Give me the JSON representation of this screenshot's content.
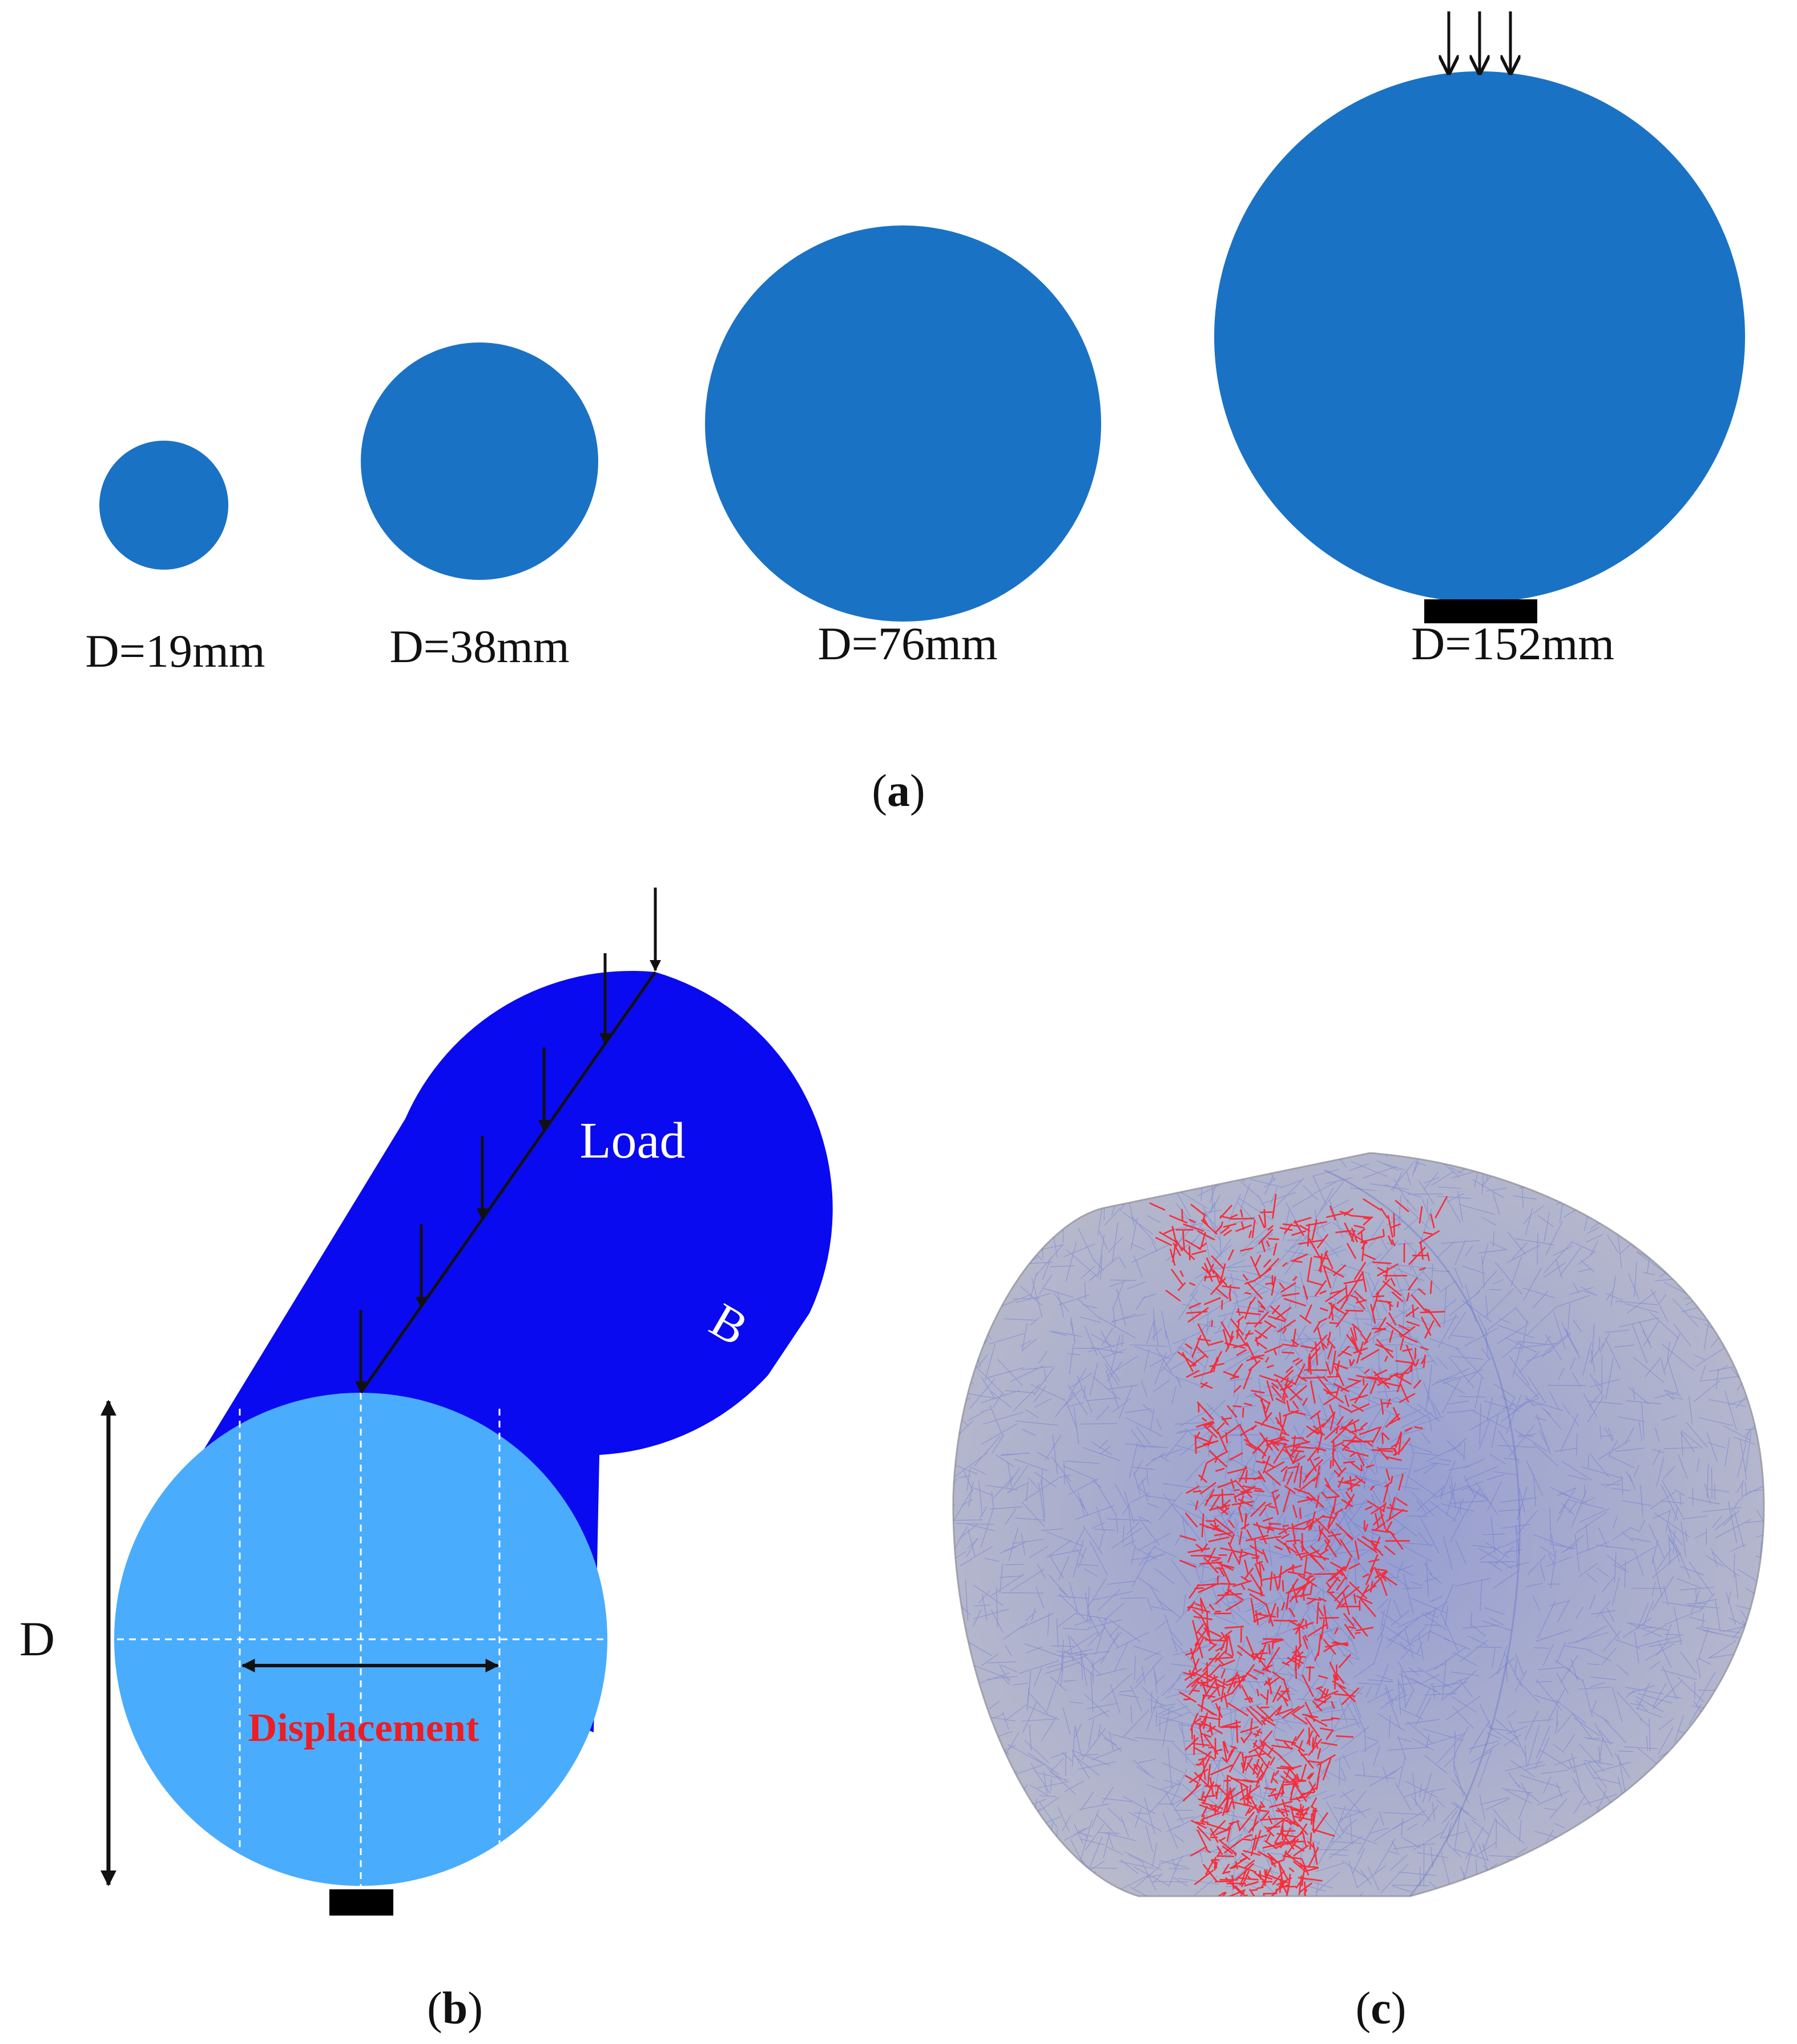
{
  "colors": {
    "specimen_a": "#1a72c4",
    "cylinder_body": "#0a0af0",
    "cylinder_face": "#4aacfc",
    "mesh_shell": "#c8c8c8",
    "mesh_lines": "#4a5ad8",
    "crack": "#ff1e2a",
    "displacement_text": "#ee1c24",
    "arrow": "#111111"
  },
  "panel_a": {
    "specimens": [
      {
        "label": "D=19mm",
        "diameter_mm": 19
      },
      {
        "label": "D=38mm",
        "diameter_mm": 38
      },
      {
        "label": "D=76mm",
        "diameter_mm": 76
      },
      {
        "label": "D=152mm",
        "diameter_mm": 152
      }
    ],
    "caption_open": "(",
    "caption_letter": "a",
    "caption_close": ")"
  },
  "panel_b": {
    "load_label": "Load",
    "b_label": "B",
    "d_label": "D",
    "displacement_label": "Displacement",
    "caption_open": "(",
    "caption_letter": "b",
    "caption_close": ")"
  },
  "panel_c": {
    "caption_open": "(",
    "caption_letter": "c",
    "caption_close": ")"
  }
}
